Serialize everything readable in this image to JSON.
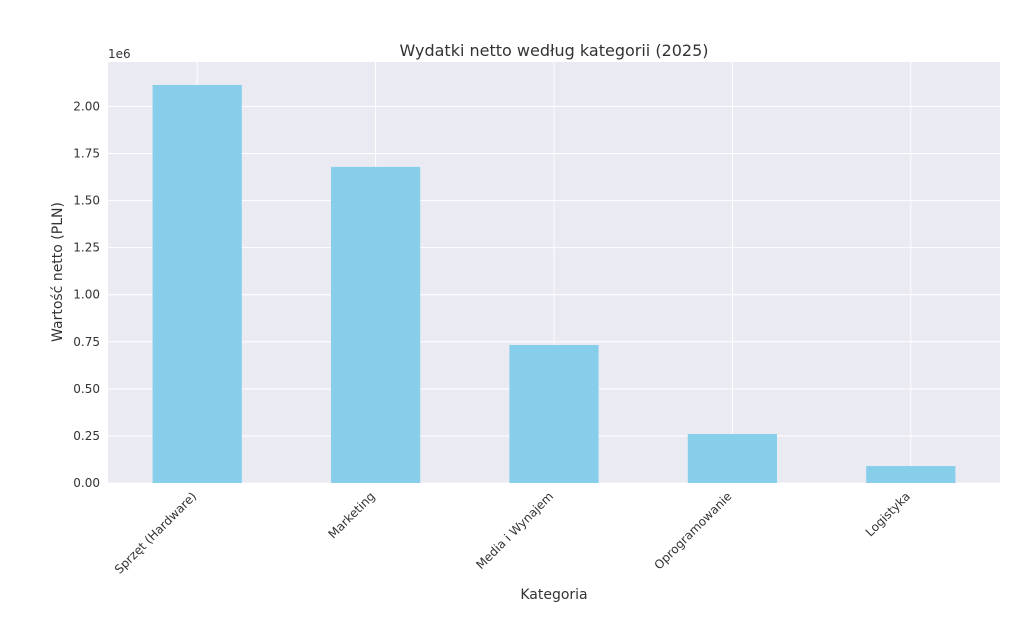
{
  "chart_data": {
    "type": "bar",
    "title": "Wydatki netto według kategorii (2025)",
    "x_label": "Kategoria",
    "y_label": "Wartość netto (PLN)",
    "y_offset_label": "1e6",
    "categories": [
      "Sprzęt (Hardware)",
      "Marketing",
      "Media i Wynajem",
      "Oprogramowanie",
      "Logistyka"
    ],
    "values": [
      2.114,
      1.679,
      0.733,
      0.26,
      0.09
    ],
    "color": "#87ceeb",
    "ylim": [
      0,
      2.236
    ],
    "yticks": [
      {
        "value": 0,
        "label": "0.00"
      },
      0.25,
      {
        "value": 0.5,
        "label": "0.50"
      },
      0.75,
      {
        "value": 1,
        "label": "1.00"
      },
      1.25,
      {
        "value": 1.5,
        "label": "1.50"
      },
      1.75,
      {
        "value": 2,
        "label": "2.00"
      }
    ],
    "grid": true
  }
}
